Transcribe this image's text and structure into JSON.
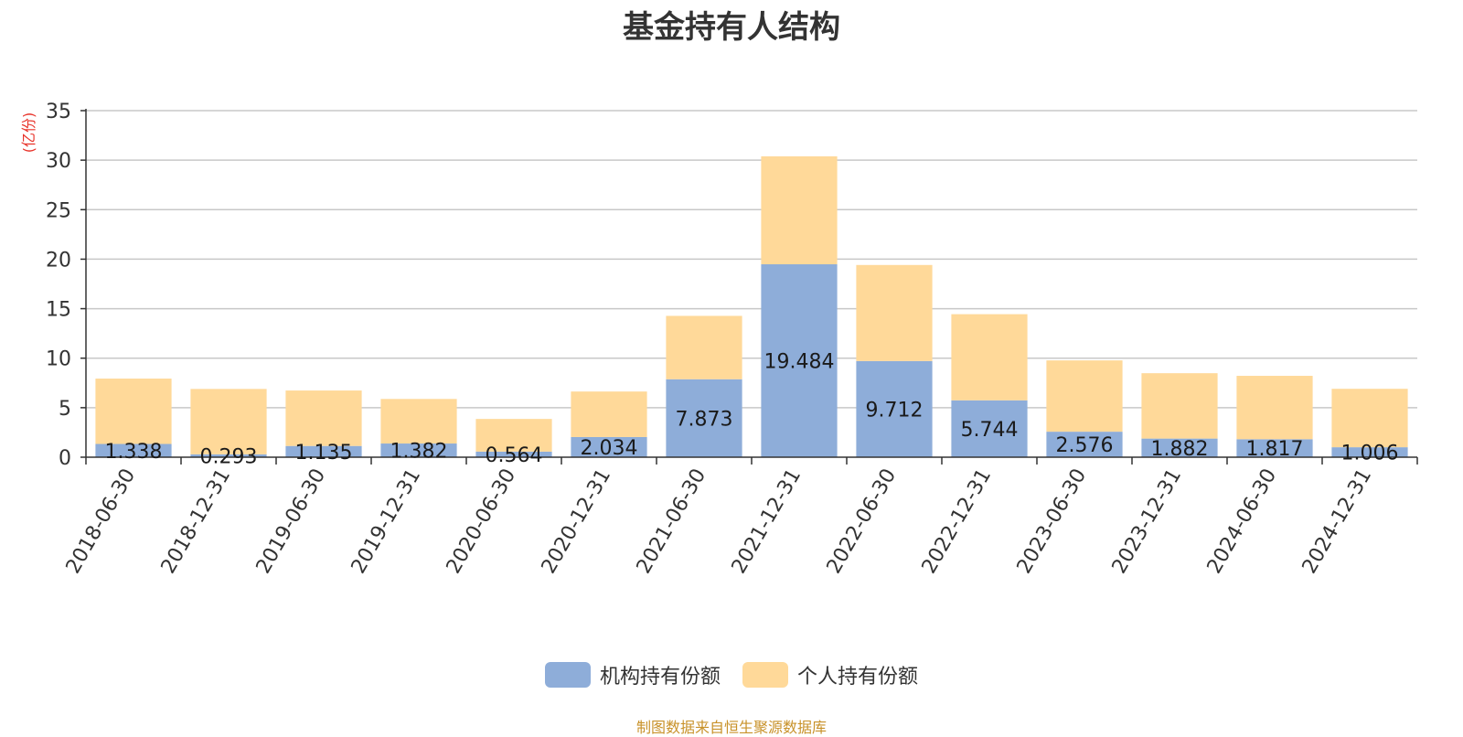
{
  "chart_data": {
    "type": "bar",
    "stacked": true,
    "title": "基金持有人结构",
    "ylabel": "(亿份)",
    "xlabel": "",
    "ylim": [
      0,
      35
    ],
    "yticks": [
      0,
      5,
      10,
      15,
      20,
      25,
      30,
      35
    ],
    "grid": true,
    "legend_position": "bottom",
    "categories": [
      "2018-06-30",
      "2018-12-31",
      "2019-06-30",
      "2019-12-31",
      "2020-06-30",
      "2020-12-31",
      "2021-06-30",
      "2021-12-31",
      "2022-06-30",
      "2022-12-31",
      "2023-06-30",
      "2023-12-31",
      "2024-06-30",
      "2024-12-31"
    ],
    "series": [
      {
        "name": "机构持有份额",
        "color": "#8eadd9",
        "values": [
          1.338,
          0.293,
          1.135,
          1.382,
          0.564,
          2.034,
          7.873,
          19.484,
          9.712,
          5.744,
          2.576,
          1.882,
          1.817,
          1.006
        ],
        "labels": [
          "1.338",
          "0.293",
          "1.135",
          "1.382",
          "0.564",
          "2.034",
          "7.873",
          "19.484",
          "9.712",
          "5.744",
          "2.576",
          "1.882",
          "1.817",
          "1.006"
        ]
      },
      {
        "name": "个人持有份额",
        "color": "#ffd999",
        "values": [
          6.6,
          6.6,
          5.6,
          4.5,
          3.3,
          4.6,
          6.4,
          10.9,
          9.7,
          8.7,
          7.2,
          6.6,
          6.4,
          5.9
        ]
      }
    ],
    "source": "制图数据来自恒生聚源数据库"
  }
}
